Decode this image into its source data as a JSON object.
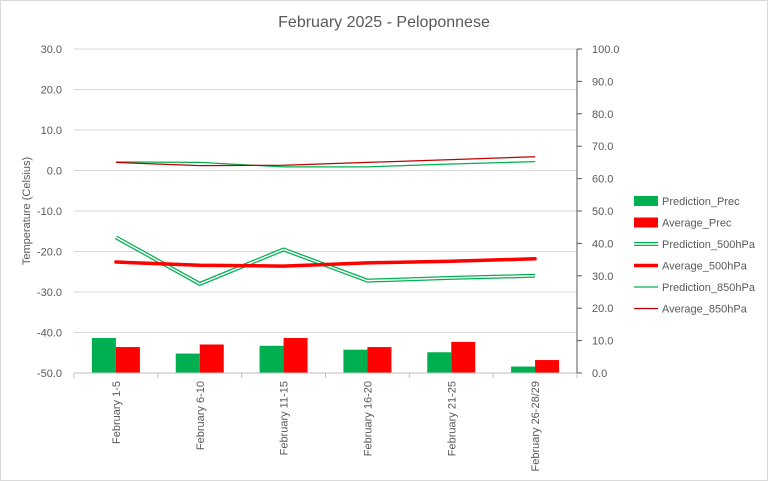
{
  "chart_data": {
    "type": "bar",
    "title": "February 2025 - Peloponnese",
    "ylabel": "Temperature (Celsius)",
    "y2label": "",
    "xlabel": "",
    "categories": [
      "February 1-5",
      "February 6-10",
      "February 11-15",
      "February 16-20",
      "February 21-25",
      "February 26-28/29"
    ],
    "ylim": [
      -50,
      30
    ],
    "y2lim": [
      0,
      100
    ],
    "yticks": [
      "30.0",
      "20.0",
      "10.0",
      "0.0",
      "-10.0",
      "-20.0",
      "-30.0",
      "-40.0",
      "-50.0"
    ],
    "y2ticks": [
      "100.0",
      "90.0",
      "80.0",
      "70.0",
      "60.0",
      "50.0",
      "40.0",
      "30.0",
      "20.0",
      "10.0",
      "0.0"
    ],
    "grid": true,
    "legend_position": "right",
    "series": [
      {
        "name": "Prediction_Prec",
        "kind": "bar",
        "axis": "right",
        "color": "#00B050",
        "values": [
          10.8,
          6.0,
          8.4,
          7.2,
          6.4,
          2.0
        ]
      },
      {
        "name": "Average_Prec",
        "kind": "bar",
        "axis": "right",
        "color": "#FF0000",
        "values": [
          8.0,
          8.8,
          10.8,
          8.0,
          9.6,
          4.0
        ]
      },
      {
        "name": "Prediction_500hPa",
        "kind": "double-line",
        "axis": "left",
        "color": "#00B050",
        "values": [
          -16.5,
          -28.0,
          -19.5,
          -27.2,
          -26.5,
          -26.0
        ]
      },
      {
        "name": "Average_500hPa",
        "kind": "thick-line",
        "axis": "left",
        "color": "#FF0000",
        "values": [
          -22.6,
          -23.4,
          -23.6,
          -22.8,
          -22.4,
          -21.8
        ]
      },
      {
        "name": "Prediction_850hPa",
        "kind": "line",
        "axis": "left",
        "color": "#00B050",
        "values": [
          2.1,
          2.0,
          0.9,
          0.9,
          1.6,
          2.2
        ]
      },
      {
        "name": "Average_850hPa",
        "kind": "line",
        "axis": "left",
        "color": "#C00000",
        "values": [
          2.0,
          1.2,
          1.3,
          2.0,
          2.7,
          3.4
        ]
      }
    ]
  }
}
